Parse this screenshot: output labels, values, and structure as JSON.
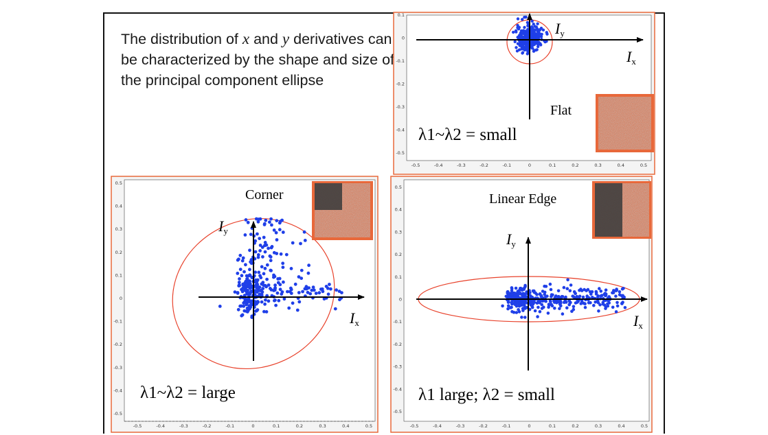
{
  "description": {
    "part1": "The distribution of ",
    "var_x": "x",
    "part2": " and ",
    "var_y": "y",
    "part3": " derivatives can be characterized by the shape and size of the principal component ellipse"
  },
  "axis_symbol": "I",
  "sub_x": "x",
  "sub_y": "y",
  "panels": {
    "flat": {
      "label": "Flat",
      "formula": "λ1~λ2 = small",
      "y_ticks": [
        "0.1",
        "0",
        "-0.1",
        "-0.2",
        "-0.3",
        "-0.4",
        "-0.5"
      ],
      "x_ticks": [
        "-0.5",
        "-0.4",
        "-0.3",
        "-0.2",
        "-0.1",
        "0",
        "0.1",
        "0.2",
        "0.3",
        "0.4",
        "0.5"
      ]
    },
    "corner": {
      "label": "Corner",
      "formula": "λ1~λ2 = large",
      "y_ticks": [
        "0.5",
        "0.4",
        "0.3",
        "0.2",
        "0.1",
        "0",
        "-0.1",
        "-0.2",
        "-0.3",
        "-0.4",
        "-0.5"
      ],
      "x_ticks": [
        "-0.5",
        "-0.4",
        "-0.3",
        "-0.2",
        "-0.1",
        "0",
        "0.1",
        "0.2",
        "0.3",
        "0.4",
        "0.5"
      ]
    },
    "edge": {
      "label": "Linear Edge",
      "formula": "λ1 large; λ2 = small",
      "y_ticks": [
        "0.5",
        "0.4",
        "0.3",
        "0.2",
        "0.1",
        "0",
        "-0.1",
        "-0.2",
        "-0.3",
        "-0.4",
        "-0.5"
      ],
      "x_ticks": [
        "-0.5",
        "-0.4",
        "-0.3",
        "-0.2",
        "-0.1",
        "0",
        "0.1",
        "0.2",
        "0.3",
        "0.4",
        "0.5"
      ]
    }
  },
  "colors": {
    "points": "#1f3fe8",
    "ellipse": "#e8412a",
    "frame": "#e8683a"
  }
}
